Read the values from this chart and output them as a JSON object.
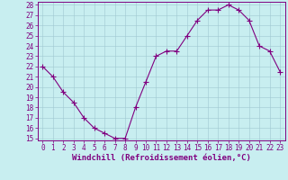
{
  "x": [
    0,
    1,
    2,
    3,
    4,
    5,
    6,
    7,
    8,
    9,
    10,
    11,
    12,
    13,
    14,
    15,
    16,
    17,
    18,
    19,
    20,
    21,
    22,
    23
  ],
  "y": [
    22,
    21,
    19.5,
    18.5,
    17,
    16,
    15.5,
    15,
    15,
    18,
    20.5,
    23,
    23.5,
    23.5,
    25,
    26.5,
    27.5,
    27.5,
    28,
    27.5,
    26.5,
    24,
    23.5,
    21.5
  ],
  "line_color": "#800080",
  "marker_color": "#800080",
  "bg_color": "#c8eef0",
  "grid_color": "#a0c8d0",
  "xlabel": "Windchill (Refroidissement éolien,°C)",
  "ylim": [
    15,
    28
  ],
  "xlim": [
    -0.5,
    23.5
  ],
  "yticks": [
    15,
    16,
    17,
    18,
    19,
    20,
    21,
    22,
    23,
    24,
    25,
    26,
    27,
    28
  ],
  "xticks": [
    0,
    1,
    2,
    3,
    4,
    5,
    6,
    7,
    8,
    9,
    10,
    11,
    12,
    13,
    14,
    15,
    16,
    17,
    18,
    19,
    20,
    21,
    22,
    23
  ],
  "tick_label_size": 5.5,
  "xlabel_size": 6.5,
  "marker_size": 2.5,
  "line_width": 0.8
}
